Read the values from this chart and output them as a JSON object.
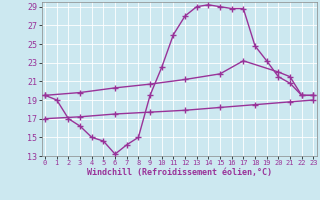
{
  "line1_x": [
    0,
    1,
    2,
    3,
    4,
    5,
    6,
    7,
    8,
    9,
    10,
    11,
    12,
    13,
    14,
    15,
    16,
    17,
    18,
    19,
    20,
    21,
    22,
    23
  ],
  "line1_y": [
    19.5,
    19.0,
    17.0,
    16.2,
    15.0,
    14.6,
    13.2,
    14.2,
    15.0,
    19.5,
    22.5,
    26.0,
    28.0,
    29.0,
    29.2,
    29.0,
    28.8,
    28.8,
    24.8,
    23.2,
    21.5,
    20.8,
    19.5,
    19.5
  ],
  "line2_x": [
    0,
    3,
    6,
    9,
    12,
    15,
    17,
    20,
    21,
    22,
    23
  ],
  "line2_y": [
    19.5,
    19.8,
    20.3,
    20.7,
    21.2,
    21.8,
    23.2,
    22.0,
    21.5,
    19.5,
    19.5
  ],
  "line3_x": [
    0,
    3,
    6,
    9,
    12,
    15,
    18,
    21,
    23
  ],
  "line3_y": [
    17.0,
    17.2,
    17.5,
    17.7,
    17.9,
    18.2,
    18.5,
    18.8,
    19.0
  ],
  "color": "#993399",
  "bg_color": "#cce8f0",
  "grid_color": "#b0d8e8",
  "xlabel": "Windchill (Refroidissement éolien,°C)",
  "xlim": [
    -0.3,
    23.3
  ],
  "ylim": [
    13,
    29.5
  ],
  "xticks": [
    0,
    1,
    2,
    3,
    4,
    5,
    6,
    7,
    8,
    9,
    10,
    11,
    12,
    13,
    14,
    15,
    16,
    17,
    18,
    19,
    20,
    21,
    22,
    23
  ],
  "yticks": [
    13,
    15,
    17,
    19,
    21,
    23,
    25,
    27,
    29
  ],
  "marker": "+",
  "markersize": 5,
  "linewidth": 1.0
}
